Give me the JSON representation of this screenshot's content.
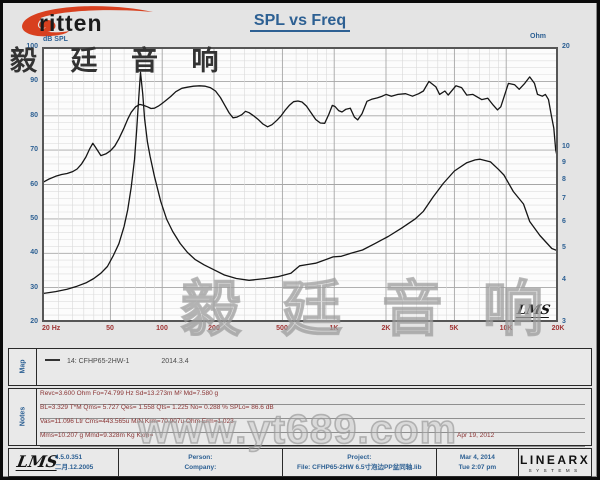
{
  "header": {
    "brand": "ritten",
    "title": "SPL vs Freq"
  },
  "watermarks": {
    "top_left": "毅 廷 音 响",
    "center": "毅 廷 音 响",
    "bottom": "www.yt689.com"
  },
  "colors": {
    "accent_blue": "#2d6093",
    "xtick_red": "#a03434",
    "notes_maroon": "#8a3333",
    "curve": "#161616",
    "brand_red": "#d8401f"
  },
  "chart": {
    "left_axis_unit": "dB SPL",
    "right_axis_unit": "Ohm",
    "left_ticks": [
      100,
      90,
      80,
      70,
      60,
      50,
      40,
      30,
      20
    ],
    "right_ticks": [
      20,
      10,
      9,
      8,
      7,
      6,
      5,
      4,
      3
    ],
    "x_ticks": [
      {
        "f": 20,
        "label": "20 Hz"
      },
      {
        "f": 50,
        "label": "50"
      },
      {
        "f": 100,
        "label": "100"
      },
      {
        "f": 200,
        "label": "200"
      },
      {
        "f": 500,
        "label": "500"
      },
      {
        "f": 1000,
        "label": "1K"
      },
      {
        "f": 2000,
        "label": "2K"
      },
      {
        "f": 5000,
        "label": "5K"
      },
      {
        "f": 10000,
        "label": "10K"
      },
      {
        "f": 20000,
        "label": "20K"
      }
    ],
    "corner_logo": "LMS"
  },
  "chart_data": {
    "type": "line",
    "title": "SPL vs Freq",
    "x_axis": {
      "label": "Hz",
      "scale": "log",
      "min": 20,
      "max": 20000
    },
    "y_axis_left": {
      "label": "dB SPL",
      "min": 20,
      "max": 100,
      "major_step": 10,
      "minor_step": 2
    },
    "y_axis_right": {
      "label": "Ohm",
      "scale": "log",
      "min": 3,
      "max": 20,
      "ticks": [
        20,
        10,
        9,
        8,
        7,
        6,
        5,
        4,
        3
      ]
    },
    "legend_position": "map-panel-below-chart",
    "series": [
      {
        "name": "14: CFHP65-2HW-1 (SPL)",
        "axis": "left",
        "points": [
          [
            20,
            60.5
          ],
          [
            22,
            61.6
          ],
          [
            24,
            62.4
          ],
          [
            26,
            62.9
          ],
          [
            28,
            63.2
          ],
          [
            30,
            63.7
          ],
          [
            32,
            64.5
          ],
          [
            34,
            66
          ],
          [
            36,
            68
          ],
          [
            38,
            70.5
          ],
          [
            39.5,
            72
          ],
          [
            41,
            70.8
          ],
          [
            44,
            68.4
          ],
          [
            47,
            68.9
          ],
          [
            50,
            69.8
          ],
          [
            53,
            71.2
          ],
          [
            56,
            73.3
          ],
          [
            60,
            76.5
          ],
          [
            63,
            79
          ],
          [
            66,
            81
          ],
          [
            70,
            82.6
          ],
          [
            74,
            83.3
          ],
          [
            78,
            83
          ],
          [
            82,
            82.6
          ],
          [
            86,
            82.1
          ],
          [
            90,
            82.2
          ],
          [
            95,
            82.8
          ],
          [
            100,
            83.6
          ],
          [
            106,
            84.6
          ],
          [
            112,
            85.6
          ],
          [
            120,
            87
          ],
          [
            130,
            88
          ],
          [
            140,
            88.3
          ],
          [
            152,
            88.6
          ],
          [
            165,
            88.7
          ],
          [
            178,
            88.6
          ],
          [
            190,
            88.2
          ],
          [
            204,
            87.2
          ],
          [
            218,
            85.3
          ],
          [
            232,
            82.9
          ],
          [
            245,
            80.8
          ],
          [
            258,
            79.4
          ],
          [
            272,
            79.6
          ],
          [
            290,
            80.3
          ],
          [
            305,
            81.3
          ],
          [
            320,
            80.9
          ],
          [
            340,
            80
          ],
          [
            360,
            79
          ],
          [
            385,
            77.6
          ],
          [
            410,
            76.8
          ],
          [
            435,
            77.4
          ],
          [
            465,
            78.7
          ],
          [
            490,
            79.9
          ],
          [
            520,
            81.7
          ],
          [
            550,
            83.1
          ],
          [
            580,
            84.1
          ],
          [
            615,
            84.3
          ],
          [
            650,
            84
          ],
          [
            690,
            82.8
          ],
          [
            730,
            81
          ],
          [
            780,
            78.9
          ],
          [
            830,
            77.9
          ],
          [
            880,
            77.8
          ],
          [
            930,
            80.4
          ],
          [
            975,
            83
          ],
          [
            1010,
            82.7
          ],
          [
            1060,
            81.5
          ],
          [
            1110,
            81.1
          ],
          [
            1170,
            81.9
          ],
          [
            1240,
            82.2
          ],
          [
            1310,
            79.6
          ],
          [
            1370,
            78.8
          ],
          [
            1450,
            80.6
          ],
          [
            1550,
            84.2
          ],
          [
            1650,
            84.8
          ],
          [
            1780,
            85.2
          ],
          [
            1900,
            85.7
          ],
          [
            2000,
            86.2
          ],
          [
            2150,
            85.7
          ],
          [
            2350,
            86.2
          ],
          [
            2600,
            86.4
          ],
          [
            2850,
            85.7
          ],
          [
            3100,
            86.4
          ],
          [
            3300,
            87.2
          ],
          [
            3550,
            90
          ],
          [
            3900,
            88.4
          ],
          [
            4100,
            86.2
          ],
          [
            4400,
            87.2
          ],
          [
            4600,
            86
          ],
          [
            5100,
            88.7
          ],
          [
            5500,
            88.2
          ],
          [
            5900,
            86
          ],
          [
            6400,
            86.2
          ],
          [
            7200,
            84.7
          ],
          [
            7800,
            85.1
          ],
          [
            8400,
            83.1
          ],
          [
            8900,
            81.7
          ],
          [
            9300,
            82.6
          ],
          [
            10300,
            89.4
          ],
          [
            11200,
            89
          ],
          [
            11900,
            87.7
          ],
          [
            12800,
            89.4
          ],
          [
            13700,
            91.3
          ],
          [
            14600,
            89.4
          ],
          [
            15200,
            86.2
          ],
          [
            16200,
            85.7
          ],
          [
            16900,
            86.2
          ],
          [
            17600,
            84.7
          ],
          [
            18300,
            80
          ],
          [
            18900,
            76.4
          ],
          [
            19400,
            70
          ],
          [
            20000,
            67.2
          ]
        ]
      },
      {
        "name": "Impedance",
        "axis": "right",
        "points": [
          [
            20,
            3.65
          ],
          [
            24,
            3.7
          ],
          [
            28,
            3.76
          ],
          [
            32,
            3.84
          ],
          [
            36,
            3.93
          ],
          [
            40,
            4.05
          ],
          [
            44,
            4.2
          ],
          [
            48,
            4.4
          ],
          [
            52,
            4.75
          ],
          [
            56,
            5.15
          ],
          [
            60,
            5.8
          ],
          [
            63,
            6.5
          ],
          [
            66,
            7.6
          ],
          [
            69,
            9.2
          ],
          [
            71,
            11.2
          ],
          [
            73,
            14
          ],
          [
            74.8,
            16.8
          ],
          [
            77,
            14.5
          ],
          [
            79,
            12.2
          ],
          [
            82,
            10.4
          ],
          [
            85,
            9.4
          ],
          [
            90,
            8.2
          ],
          [
            98,
            6.9
          ],
          [
            106,
            6.1
          ],
          [
            115,
            5.6
          ],
          [
            127,
            5.16
          ],
          [
            140,
            4.85
          ],
          [
            155,
            4.62
          ],
          [
            175,
            4.45
          ],
          [
            200,
            4.3
          ],
          [
            230,
            4.15
          ],
          [
            270,
            4.05
          ],
          [
            320,
            4.0
          ],
          [
            400,
            4.05
          ],
          [
            470,
            4.1
          ],
          [
            560,
            4.2
          ],
          [
            630,
            4.42
          ],
          [
            700,
            4.46
          ],
          [
            780,
            4.5
          ],
          [
            900,
            4.62
          ],
          [
            985,
            4.7
          ],
          [
            1100,
            4.72
          ],
          [
            1250,
            4.82
          ],
          [
            1460,
            4.93
          ],
          [
            1730,
            5.16
          ],
          [
            2060,
            5.41
          ],
          [
            2460,
            5.73
          ],
          [
            2950,
            6.1
          ],
          [
            3300,
            6.44
          ],
          [
            3750,
            7.1
          ],
          [
            4300,
            7.8
          ],
          [
            5000,
            8.5
          ],
          [
            5900,
            9.0
          ],
          [
            6600,
            9.18
          ],
          [
            7050,
            9.22
          ],
          [
            8100,
            9.05
          ],
          [
            9000,
            8.6
          ],
          [
            9700,
            8.27
          ],
          [
            11000,
            7.38
          ],
          [
            12600,
            6.77
          ],
          [
            13700,
            6.0
          ],
          [
            15700,
            5.45
          ],
          [
            18400,
            4.98
          ],
          [
            20000,
            4.9
          ]
        ]
      }
    ]
  },
  "map": {
    "label": "Map",
    "legend_name": "14: CFHP65-2HW-1",
    "legend_date": "2014.3.4"
  },
  "notes": {
    "label": "Notes",
    "lines": [
      "Revc=3.600 Ohm  Fo=74.799 Hz  Sd=13.273m M²  Md=7.580 g",
      "BL=3.329 T*M  Qms= 5.727  Qes= 1.558  Qts= 1.225  No= 0.288 %  SPLo= 86.6 dB",
      "Vas=11.096 Ltr  Cms=443.565u M/N  Krm=70.907u Ohm  Erm=1.023",
      "Mms=10.207 g  Mmd=9.328m Kg  Kxm="
    ],
    "line4_right": "Apr 19, 2012"
  },
  "footer": {
    "lms_logo": "LMS",
    "version": "4.5.0.351",
    "version_date": "二月.12.2005",
    "person_label": "Person:",
    "company_label": "Company:",
    "project_label": "Project:",
    "file_label": "File: CFHP65-2HW 6.5寸泡边PP盆同轴.lib",
    "date": "Mar  4, 2014",
    "time": "Tue  2:07 pm",
    "brand": "LINEARX",
    "brand_sub": "SYSTEMS"
  }
}
